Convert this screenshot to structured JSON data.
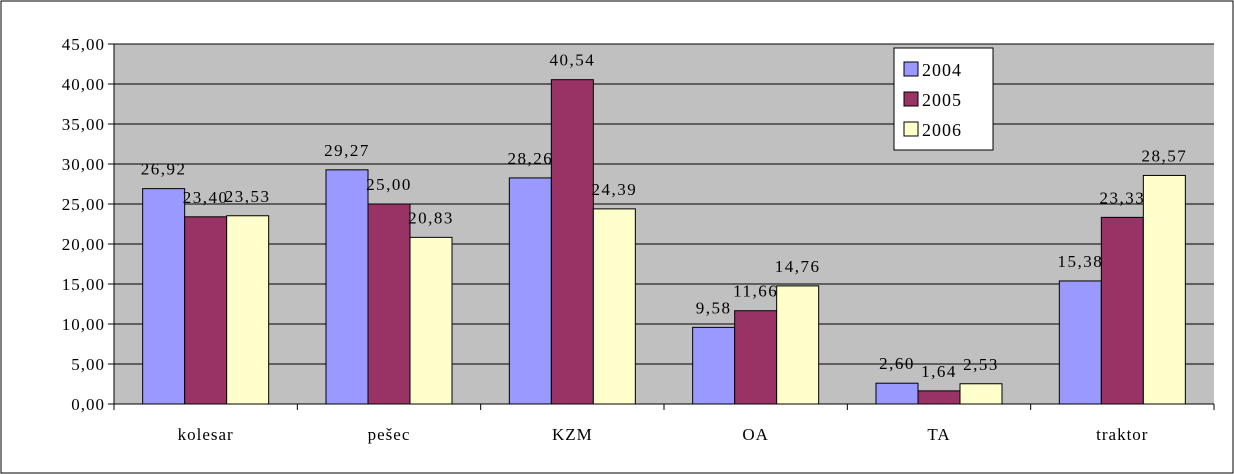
{
  "chart_data": {
    "type": "bar",
    "categories": [
      "kolesar",
      "pešec",
      "KZM",
      "OA",
      "TA",
      "traktor"
    ],
    "series": [
      {
        "name": "2004",
        "values": [
          26.92,
          29.27,
          28.26,
          9.58,
          2.6,
          15.38
        ],
        "color": "#9999FF"
      },
      {
        "name": "2005",
        "values": [
          23.4,
          25.0,
          40.54,
          11.66,
          1.64,
          23.33
        ],
        "color": "#993366"
      },
      {
        "name": "2006",
        "values": [
          23.53,
          20.83,
          24.39,
          14.76,
          2.53,
          28.57
        ],
        "color": "#FFFFCC"
      }
    ],
    "value_labels": [
      [
        "26,92",
        "29,27",
        "28,26",
        "9,58",
        "2,60",
        "15,38"
      ],
      [
        "23,40",
        "25,00",
        "40,54",
        "11,66",
        "1,64",
        "23,33"
      ],
      [
        "23,53",
        "20,83",
        "24,39",
        "14,76",
        "2,53",
        "28,57"
      ]
    ],
    "ylim": [
      0,
      45
    ],
    "yticks": [
      "0,00",
      "5,00",
      "10,00",
      "15,00",
      "20,00",
      "25,00",
      "30,00",
      "35,00",
      "40,00",
      "45,00"
    ],
    "ytick_step": 5,
    "grid": true,
    "legend_position": "top-right",
    "plot_background": "#C0C0C0",
    "title": "",
    "xlabel": "",
    "ylabel": ""
  }
}
